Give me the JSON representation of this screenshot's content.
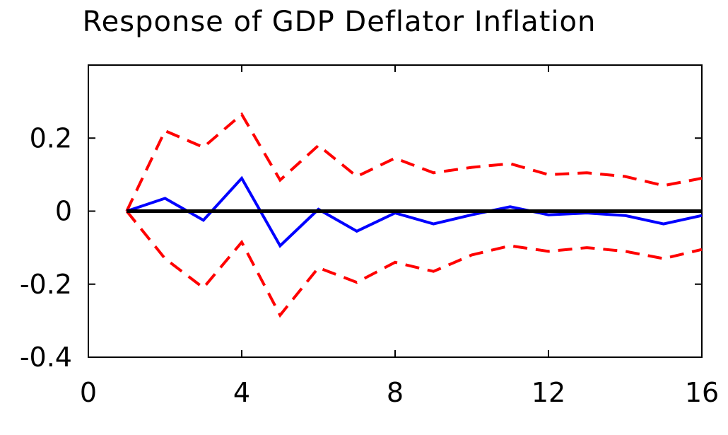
{
  "chart_data": {
    "type": "line",
    "title": "Response of GDP Deflator Inflation",
    "xlabel": "",
    "ylabel": "",
    "xlim": [
      0,
      16
    ],
    "ylim": [
      -0.4,
      0.4
    ],
    "xticks": [
      0,
      4,
      8,
      12,
      16
    ],
    "xtick_labels": [
      "0",
      "4",
      "8",
      "12",
      "16"
    ],
    "yticks": [
      -0.4,
      -0.2,
      0,
      0.2
    ],
    "ytick_labels": [
      "-0.4",
      "-0.2",
      "0",
      "0.2"
    ],
    "grid": false,
    "legend": "none",
    "x": [
      1,
      2,
      3,
      4,
      5,
      6,
      7,
      8,
      9,
      10,
      11,
      12,
      13,
      14,
      15,
      16
    ],
    "series": [
      {
        "role": "response",
        "color": "#0000ff",
        "style": "solid",
        "values": [
          0.0,
          0.035,
          -0.025,
          0.09,
          -0.095,
          0.005,
          -0.055,
          -0.005,
          -0.035,
          -0.01,
          0.012,
          -0.01,
          -0.005,
          -0.012,
          -0.035,
          -0.012
        ]
      },
      {
        "role": "upper-band",
        "color": "#ff0000",
        "style": "dashed",
        "values": [
          0.0,
          0.22,
          0.175,
          0.265,
          0.085,
          0.18,
          0.095,
          0.145,
          0.105,
          0.12,
          0.13,
          0.1,
          0.105,
          0.095,
          0.07,
          0.09
        ]
      },
      {
        "role": "lower-band",
        "color": "#ff0000",
        "style": "dashed",
        "values": [
          0.0,
          -0.13,
          -0.21,
          -0.085,
          -0.285,
          -0.155,
          -0.195,
          -0.14,
          -0.165,
          -0.12,
          -0.095,
          -0.11,
          -0.1,
          -0.11,
          -0.13,
          -0.105
        ]
      },
      {
        "role": "zero-line",
        "color": "#000000",
        "style": "solid",
        "values": [
          0,
          0,
          0,
          0,
          0,
          0,
          0,
          0,
          0,
          0,
          0,
          0,
          0,
          0,
          0,
          0
        ]
      }
    ]
  }
}
